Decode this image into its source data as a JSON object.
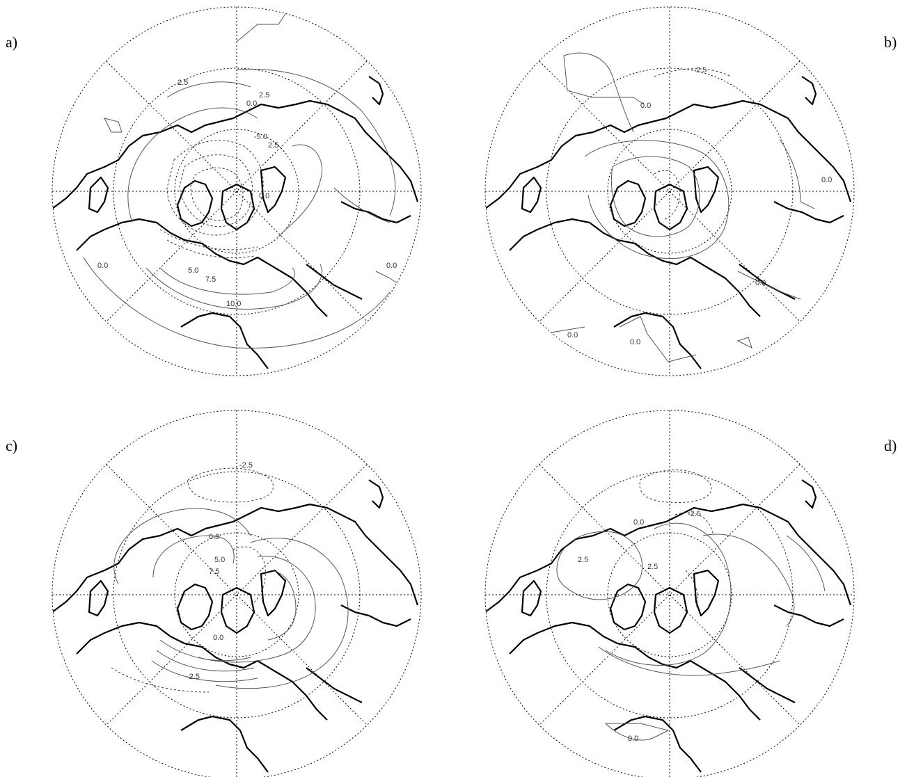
{
  "figure": {
    "panels": [
      {
        "label": "a)",
        "contour_labels": [
          "2.5",
          "2.5",
          "0.0",
          "-5.0",
          "2.5",
          "0.0",
          "5.0",
          "7.5",
          "10.0",
          "0.0",
          "0.0"
        ]
      },
      {
        "label": "b)",
        "contour_labels": [
          "2.5",
          "0.0",
          "0.0",
          "0.0",
          "0.0",
          "0.0"
        ]
      },
      {
        "label": "c)",
        "contour_labels": [
          "-2.5",
          "0.0",
          "5.0",
          "7.5",
          "0.0",
          "-2.5"
        ]
      },
      {
        "label": "d)",
        "contour_labels": [
          "-2.5",
          "0.0",
          "2.5",
          "2.5",
          "0.0"
        ]
      }
    ]
  },
  "style": {
    "grid_color": "#000000",
    "contour_color": "#555555",
    "coast_color": "#000000"
  }
}
